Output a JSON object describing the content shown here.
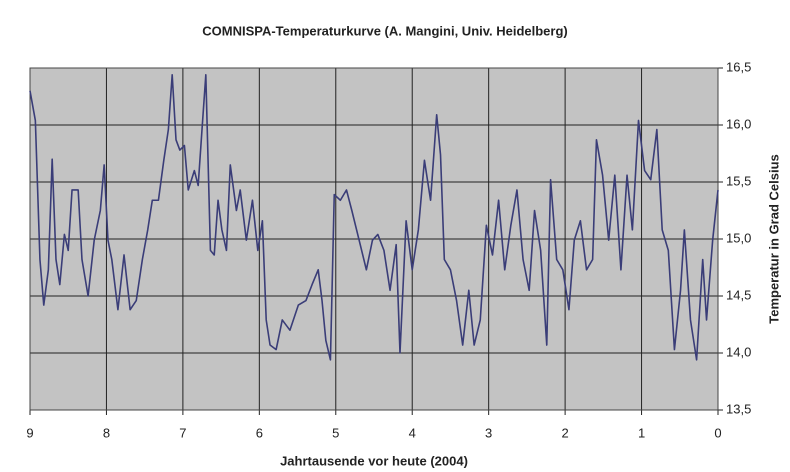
{
  "chart_data": {
    "type": "line",
    "title": "COMNISPA-Temperaturkurve (A. Mangini, Univ. Heidelberg)",
    "x_label": "Jahrtausende vor heute (2004)",
    "y_label": "Temperatur in Grad Celsius",
    "color": "#3a3d78",
    "background": "#c3c3c3",
    "grid": true,
    "xlim": [
      9,
      0
    ],
    "xticks": [
      9,
      8,
      7,
      6,
      5,
      4,
      3,
      2,
      1,
      0
    ],
    "ylim": [
      13.5,
      16.5
    ],
    "yticks": [
      {
        "value": 13.5,
        "label": "13,5"
      },
      {
        "value": 14,
        "label": "14,0"
      },
      {
        "value": 14.5,
        "label": "14,5"
      },
      {
        "value": 15,
        "label": "15,0"
      },
      {
        "value": 15.5,
        "label": "15,5"
      },
      {
        "value": 16,
        "label": "16,0"
      },
      {
        "value": 16.5,
        "label": "16,5"
      }
    ],
    "x": [
      9.0,
      8.93,
      8.87,
      8.82,
      8.76,
      8.71,
      8.66,
      8.61,
      8.55,
      8.5,
      8.45,
      8.37,
      8.32,
      8.24,
      8.16,
      8.08,
      8.03,
      7.98,
      7.93,
      7.85,
      7.77,
      7.69,
      7.61,
      7.53,
      7.46,
      7.4,
      7.32,
      7.25,
      7.19,
      7.14,
      7.09,
      7.04,
      6.98,
      6.93,
      6.85,
      6.8,
      6.75,
      6.7,
      6.64,
      6.59,
      6.54,
      6.49,
      6.43,
      6.38,
      6.3,
      6.25,
      6.17,
      6.09,
      6.02,
      5.96,
      5.91,
      5.86,
      5.78,
      5.7,
      5.6,
      5.49,
      5.39,
      5.31,
      5.23,
      5.18,
      5.13,
      5.07,
      5.02,
      4.94,
      4.86,
      4.79,
      4.68,
      4.6,
      4.52,
      4.45,
      4.37,
      4.29,
      4.21,
      4.16,
      4.08,
      4.0,
      3.92,
      3.84,
      3.76,
      3.68,
      3.63,
      3.58,
      3.5,
      3.42,
      3.34,
      3.26,
      3.19,
      3.11,
      3.03,
      2.95,
      2.87,
      2.79,
      2.71,
      2.63,
      2.55,
      2.47,
      2.4,
      2.32,
      2.24,
      2.19,
      2.11,
      2.03,
      1.95,
      1.88,
      1.8,
      1.72,
      1.64,
      1.59,
      1.51,
      1.43,
      1.35,
      1.27,
      1.19,
      1.12,
      1.04,
      0.96,
      0.88,
      0.8,
      0.73,
      0.65,
      0.57,
      0.49,
      0.44,
      0.36,
      0.28,
      0.2,
      0.15,
      0.07,
      0.0
    ],
    "values": [
      16.3,
      16.04,
      14.82,
      14.42,
      14.73,
      15.7,
      14.82,
      14.6,
      15.04,
      14.9,
      15.43,
      15.43,
      14.82,
      14.5,
      14.99,
      15.25,
      15.65,
      14.99,
      14.82,
      14.38,
      14.86,
      14.38,
      14.46,
      14.82,
      15.08,
      15.34,
      15.34,
      15.69,
      15.96,
      16.44,
      15.87,
      15.78,
      15.82,
      15.43,
      15.6,
      15.47,
      15.96,
      16.44,
      14.9,
      14.86,
      15.34,
      15.08,
      14.9,
      15.65,
      15.25,
      15.43,
      14.99,
      15.34,
      14.9,
      15.16,
      14.29,
      14.07,
      14.03,
      14.29,
      14.2,
      14.42,
      14.46,
      14.6,
      14.73,
      14.46,
      14.11,
      13.94,
      15.39,
      15.34,
      15.43,
      15.25,
      14.95,
      14.73,
      14.99,
      15.04,
      14.9,
      14.55,
      14.95,
      14.0,
      15.16,
      14.73,
      15.08,
      15.69,
      15.34,
      16.09,
      15.74,
      14.82,
      14.73,
      14.46,
      14.07,
      14.55,
      14.07,
      14.29,
      15.12,
      14.86,
      15.34,
      14.73,
      15.12,
      15.43,
      14.82,
      14.55,
      15.25,
      14.9,
      14.07,
      15.52,
      14.82,
      14.73,
      14.38,
      14.99,
      15.16,
      14.73,
      14.82,
      15.87,
      15.56,
      14.99,
      15.56,
      14.73,
      15.56,
      15.08,
      16.04,
      15.6,
      15.52,
      15.96,
      15.08,
      14.9,
      14.03,
      14.55,
      15.08,
      14.29,
      13.94,
      14.82,
      14.29,
      14.99,
      15.43
    ]
  }
}
